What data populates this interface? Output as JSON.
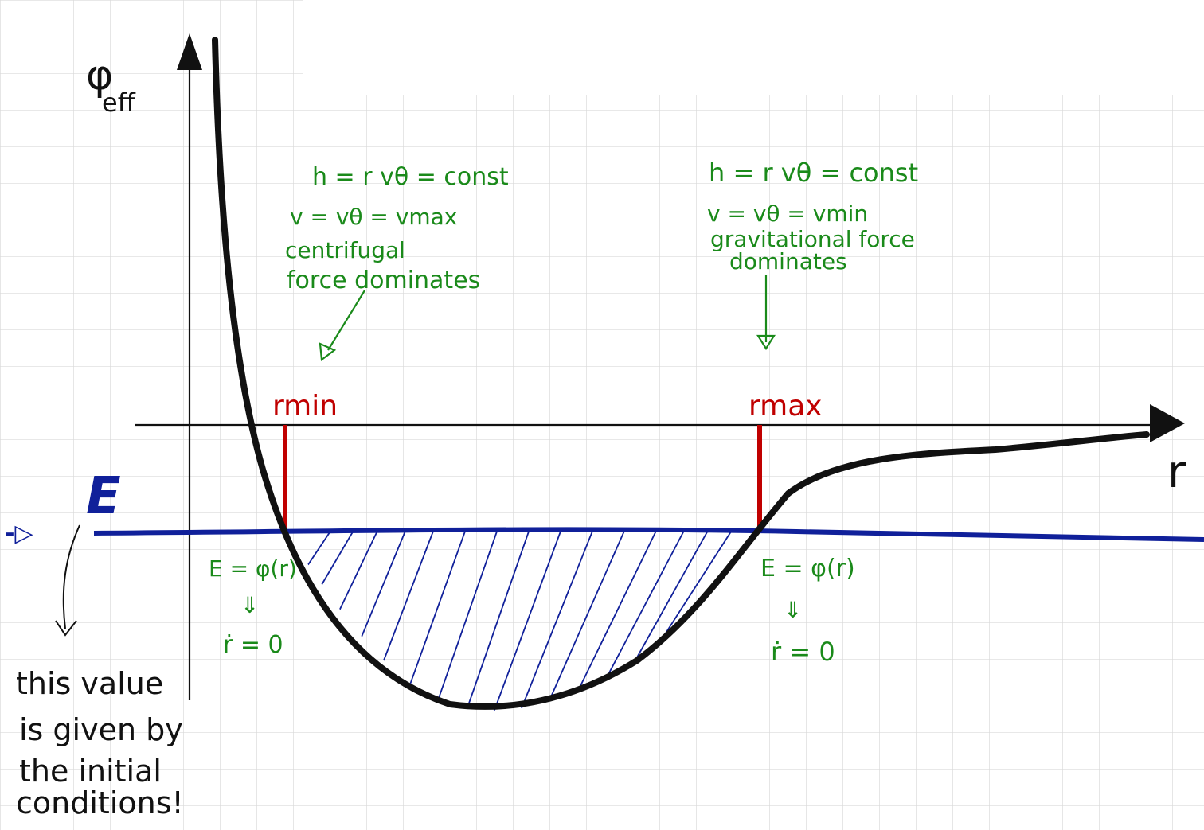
{
  "axes": {
    "y_label": "φ",
    "y_label_sub": "eff",
    "x_label": "r"
  },
  "energy": {
    "label": "E",
    "arrow_glyph": "-▷"
  },
  "turning_points": {
    "r_min": "rmin",
    "r_max": "rmax"
  },
  "left_note": {
    "line1": "h = r vθ = const",
    "line2": "v = vθ = vmax",
    "line3": "centrifugal",
    "line4": "force dominates"
  },
  "right_note": {
    "line1": "h = r vθ = const",
    "line2": "v = vθ = vmin",
    "line3": "gravitational force",
    "line4": "dominates"
  },
  "left_condition": {
    "equation": "E = φ(r)",
    "implies": "⇓",
    "result": "ṙ = 0"
  },
  "right_condition": {
    "equation": "E = φ(r)",
    "implies": "⇓",
    "result": "ṙ = 0"
  },
  "energy_note": {
    "line1": "this value",
    "line2": "is given by",
    "line3": "the initial",
    "line4": "conditions!"
  },
  "colors": {
    "curve": "#111111",
    "energy_line": "#10209a",
    "turning_point": "#c00000",
    "annotation": "#1a8a1a",
    "grid": "#d6d6d6"
  }
}
